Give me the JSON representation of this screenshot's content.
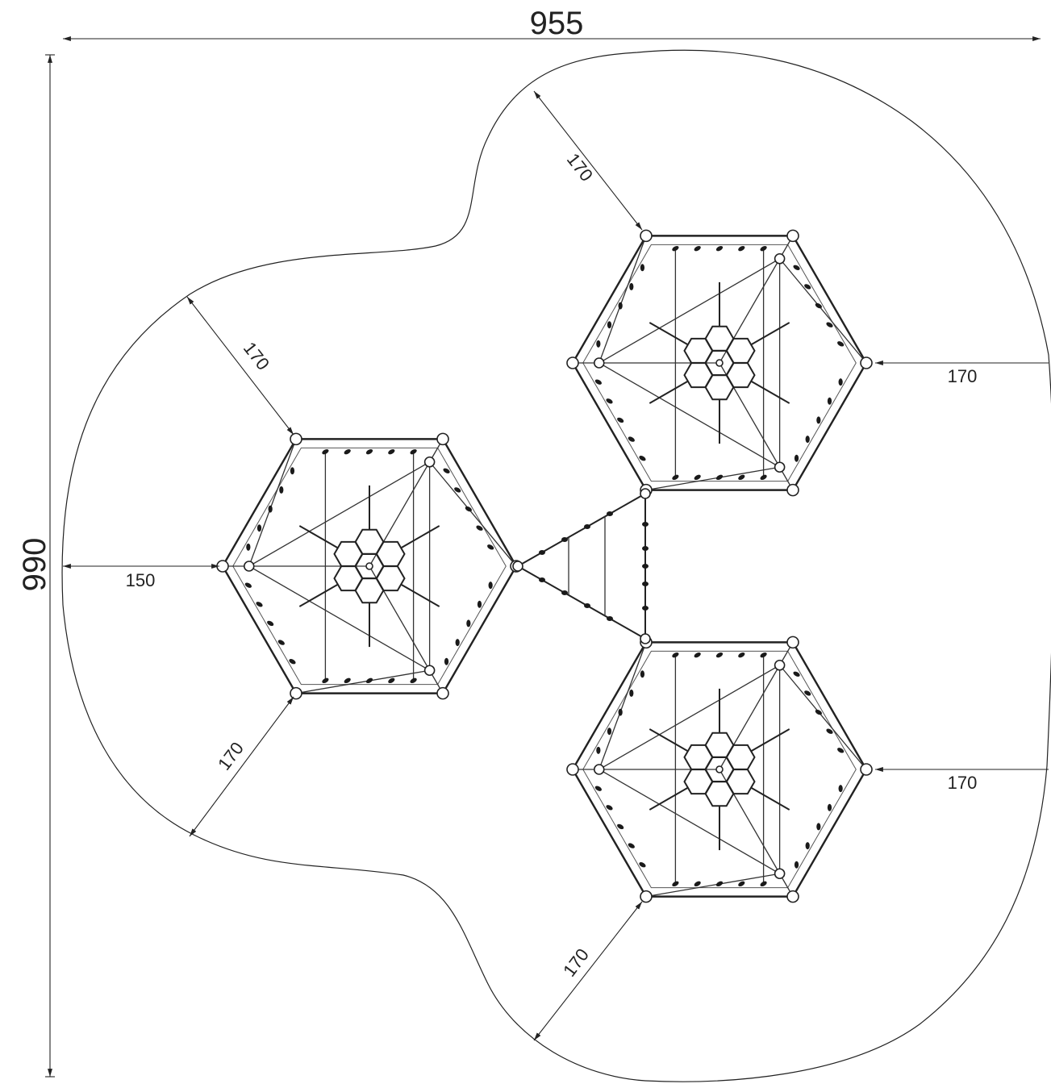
{
  "dimensions": {
    "overall_width": "955",
    "overall_height": "990",
    "clearances": [
      "170",
      "170",
      "150",
      "170",
      "170",
      "170",
      "170"
    ]
  },
  "colors": {
    "line": "#222222",
    "background": "#ffffff"
  },
  "units": []
}
